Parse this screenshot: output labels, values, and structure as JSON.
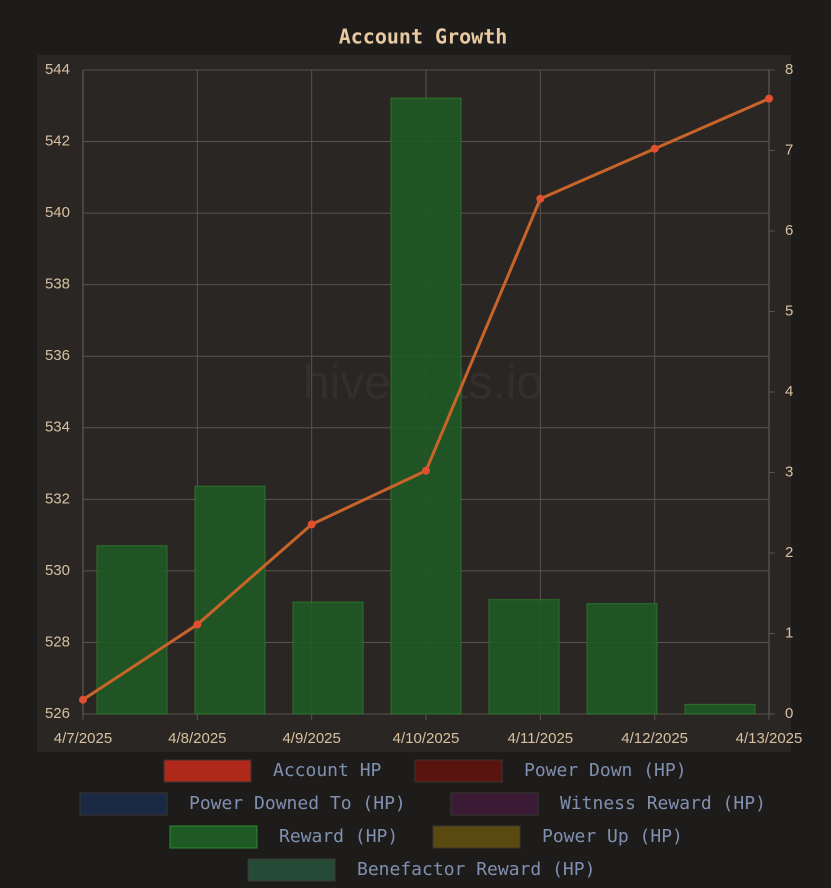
{
  "chart_data": {
    "type": "bar-line",
    "title": "Account Growth",
    "watermark": "hivestats.io",
    "categories": [
      "4/7/2025",
      "4/8/2025",
      "4/9/2025",
      "4/10/2025",
      "4/11/2025",
      "4/12/2025",
      "4/13/2025"
    ],
    "series": [
      {
        "name": "Account HP",
        "type": "line",
        "color": "#b0281a",
        "line_color": "#c8642a",
        "axis": "y",
        "values": [
          526.4,
          528.5,
          531.3,
          532.8,
          540.4,
          541.8,
          543.2
        ]
      },
      {
        "name": "Power Down (HP)",
        "type": "bar",
        "color": "#5a1410",
        "axis": "y2",
        "values": [
          null,
          null,
          null,
          null,
          null,
          null,
          null
        ]
      },
      {
        "name": "Power Downed To (HP)",
        "type": "bar",
        "color": "#1a2a45",
        "axis": "y2",
        "values": [
          null,
          null,
          null,
          null,
          null,
          null,
          null
        ]
      },
      {
        "name": "Witness Reward (HP)",
        "type": "bar",
        "color": "#3a1a35",
        "axis": "y2",
        "values": [
          null,
          null,
          null,
          null,
          null,
          null,
          null
        ]
      },
      {
        "name": "Reward (HP)",
        "type": "bar",
        "color": "#1f5a25",
        "axis": "y2",
        "values": [
          2.09,
          2.83,
          1.39,
          7.65,
          1.42,
          1.37,
          0.12
        ]
      },
      {
        "name": "Power Up (HP)",
        "type": "bar",
        "color": "#5a4a10",
        "axis": "y2",
        "values": [
          null,
          null,
          null,
          null,
          null,
          null,
          null
        ]
      },
      {
        "name": "Benefactor Reward (HP)",
        "type": "bar",
        "color": "#254a35",
        "axis": "y2",
        "values": [
          null,
          null,
          null,
          null,
          null,
          null,
          null
        ]
      }
    ],
    "ylim": [
      526,
      544
    ],
    "yticks": [
      526,
      528,
      530,
      532,
      534,
      536,
      538,
      540,
      542,
      544
    ],
    "y2lim": [
      0,
      8
    ],
    "y2ticks": [
      0,
      1,
      2,
      3,
      4,
      5,
      6,
      7,
      8
    ],
    "grid": true
  }
}
